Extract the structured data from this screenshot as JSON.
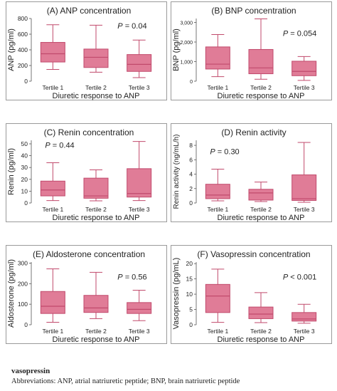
{
  "colors": {
    "box_fill": "#e07c97",
    "box_stroke": "#c14a6c",
    "frame": "#9a9a9a",
    "text": "#222222"
  },
  "captions": {
    "bold_line": "vasopressin",
    "abbreviations": "Abbreviations: ANP, atrial natriuretic peptide; BNP, brain natriuretic peptide"
  },
  "chart_data": [
    {
      "type": "box",
      "title": "(A) ANP concentration",
      "ylabel": "ANP (pg/ml)",
      "xlabel": "Diuretic response to ANP",
      "categories": [
        "Tertile 1",
        "Tertile 2",
        "Tertile 3"
      ],
      "ylim": [
        0,
        800
      ],
      "yticks": [
        0,
        200,
        400,
        600,
        800
      ],
      "yticklabels": [
        "0",
        "200",
        "400",
        "600",
        "800"
      ],
      "annotation": {
        "p_label": "P",
        "text": " = 0.04"
      },
      "boxes": [
        {
          "min": 150,
          "q1": 245,
          "median": 350,
          "q3": 495,
          "max": 720
        },
        {
          "min": 115,
          "q1": 175,
          "median": 305,
          "q3": 410,
          "max": 715
        },
        {
          "min": 45,
          "q1": 125,
          "median": 215,
          "q3": 340,
          "max": 525
        }
      ]
    },
    {
      "type": "box",
      "title": "(B) BNP concentration",
      "ylabel": "BNP (pg/ml)",
      "xlabel": "Diuretic response to ANP",
      "categories": [
        "Tertile 1",
        "Tertile 2",
        "Tertile 3"
      ],
      "ylim": [
        0,
        3200
      ],
      "yticks": [
        0,
        1000,
        2000,
        3000
      ],
      "yticklabels": [
        "0",
        "1,000",
        "2,000",
        "3,000"
      ],
      "annotation": {
        "p_label": "P",
        "text": " = 0.054"
      },
      "boxes": [
        {
          "min": 230,
          "q1": 620,
          "median": 870,
          "q3": 1750,
          "max": 2380
        },
        {
          "min": 100,
          "q1": 380,
          "median": 680,
          "q3": 1620,
          "max": 3180
        },
        {
          "min": 40,
          "q1": 280,
          "median": 500,
          "q3": 1020,
          "max": 1260
        }
      ]
    },
    {
      "type": "box",
      "title": "(C) Renin concentration",
      "ylabel": "Renin (pg/ml)",
      "xlabel": "Diuretic response to ANP",
      "categories": [
        "Tertile 1",
        "Tertile 2",
        "Tertile 3"
      ],
      "ylim": [
        0,
        53
      ],
      "yticks": [
        0,
        10,
        20,
        30,
        40,
        50
      ],
      "yticklabels": [
        "0",
        "10",
        "20",
        "30",
        "40",
        "50"
      ],
      "annotation": {
        "p_label": "P",
        "text": " = 0.44"
      },
      "boxes": [
        {
          "min": 2,
          "q1": 6,
          "median": 11,
          "q3": 18.5,
          "max": 34
        },
        {
          "min": 1.8,
          "q1": 4,
          "median": 6,
          "q3": 21,
          "max": 28
        },
        {
          "min": 2,
          "q1": 5,
          "median": 8,
          "q3": 29,
          "max": 52
        }
      ]
    },
    {
      "type": "box",
      "title": "(D) Renin activity",
      "ylabel": "Renin activity (ng/mL/h)",
      "xlabel": "Diuretic response to ANP",
      "categories": [
        "Tertile 1",
        "Tertile 2",
        "Tertile 3"
      ],
      "ylim": [
        0,
        8.7
      ],
      "yticks": [
        0,
        2,
        4,
        6,
        8
      ],
      "yticklabels": [
        "0",
        "2",
        "4",
        "6",
        "8"
      ],
      "annotation": {
        "p_label": "P",
        "text": " = 0.30"
      },
      "boxes": [
        {
          "min": 0.3,
          "q1": 0.6,
          "median": 1.1,
          "q3": 2.6,
          "max": 4.7
        },
        {
          "min": 0.2,
          "q1": 0.4,
          "median": 1.4,
          "q3": 1.9,
          "max": 2.9
        },
        {
          "min": 0.1,
          "q1": 0.35,
          "median": 0.6,
          "q3": 3.9,
          "max": 8.4
        }
      ]
    },
    {
      "type": "box",
      "title": "(E) Aldosterone concentration",
      "ylabel": "Aldosterone (pg/ml)",
      "xlabel": "Diuretic response to ANP",
      "categories": [
        "Tertile 1",
        "Tertile 2",
        "Tertile 3"
      ],
      "ylim": [
        0,
        305
      ],
      "yticks": [
        0,
        100,
        200,
        300
      ],
      "yticklabels": [
        "0",
        "100",
        "200",
        "300"
      ],
      "annotation": {
        "p_label": "P",
        "text": " = 0.56"
      },
      "boxes": [
        {
          "min": 12,
          "q1": 55,
          "median": 90,
          "q3": 162,
          "max": 272
        },
        {
          "min": 30,
          "q1": 60,
          "median": 82,
          "q3": 143,
          "max": 255
        },
        {
          "min": 20,
          "q1": 55,
          "median": 75,
          "q3": 108,
          "max": 168
        }
      ]
    },
    {
      "type": "box",
      "title": "(F) Vasopressin concentration",
      "ylabel": "Vasopressin (pg/mL)",
      "xlabel": "Diuretic response to ANP",
      "categories": [
        "Tertile 1",
        "Tertile 2",
        "Tertile 3"
      ],
      "ylim": [
        0,
        20.5
      ],
      "yticks": [
        0,
        5,
        10,
        15,
        20
      ],
      "yticklabels": [
        "0",
        "5",
        "10",
        "15",
        "20"
      ],
      "annotation": {
        "p_label": "P",
        "text": " < 0.001"
      },
      "boxes": [
        {
          "min": 0.8,
          "q1": 4,
          "median": 9.4,
          "q3": 13.2,
          "max": 18.2
        },
        {
          "min": 0.7,
          "q1": 2,
          "median": 3.5,
          "q3": 5.8,
          "max": 10.5
        },
        {
          "min": 0.5,
          "q1": 1.2,
          "median": 1.9,
          "q3": 4,
          "max": 6.7
        }
      ]
    }
  ]
}
